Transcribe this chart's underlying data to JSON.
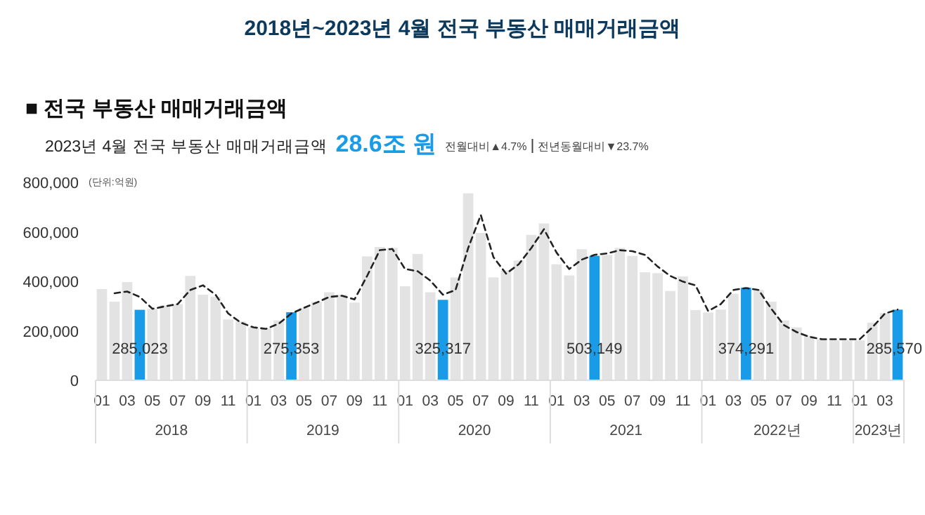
{
  "chart_data": {
    "type": "bar",
    "title": "2018년~2023년 4월 전국 부동산 매매거래금액",
    "subtitle": "■ 전국 부동산 매매거래금액",
    "ylabel": "(단위:억원)",
    "annotations": [
      "2023년 4월 전국 부동산 매매거래금액",
      "28.6조 원",
      "전월대비▲4.7%",
      "전년동월대비▼23.7%",
      "2018",
      "2019",
      "2020",
      "2021",
      "2022년",
      "2023년"
    ],
    "categories": [
      "01",
      null,
      "03",
      null,
      "05",
      null,
      "07",
      null,
      "09",
      null,
      "11",
      null,
      "01",
      null,
      "03",
      null,
      "05",
      null,
      "07",
      null,
      "09",
      null,
      "11",
      null,
      "01",
      null,
      "03",
      null,
      "05",
      null,
      "07",
      null,
      "09",
      null,
      "11",
      null,
      "01",
      null,
      "03",
      null,
      "05",
      null,
      "07",
      null,
      "09",
      null,
      "11",
      null,
      "01",
      null,
      "03",
      null,
      "05",
      null,
      "07",
      null,
      "09",
      null,
      "11",
      null,
      "01",
      null,
      "03",
      null
    ],
    "ylim": [
      0,
      800000
    ],
    "yticks": [
      {
        "value": 0,
        "label": "0"
      },
      {
        "value": 200000,
        "label": "200,000"
      },
      {
        "value": 400000,
        "label": "400,000"
      },
      {
        "value": 600000,
        "label": "600,000"
      },
      {
        "value": 800000,
        "label": "800,000"
      }
    ],
    "grid": false,
    "series": [
      {
        "colors": [
          "#e3e3e3",
          "#e3e3e3",
          "#e3e3e3",
          "#1a9be8",
          "#e3e3e3",
          "#e3e3e3",
          "#e3e3e3",
          "#e3e3e3",
          "#e3e3e3",
          "#e3e3e3",
          "#e3e3e3",
          "#e3e3e3",
          "#e3e3e3",
          "#e3e3e3",
          "#e3e3e3",
          "#1a9be8",
          "#e3e3e3",
          "#e3e3e3",
          "#e3e3e3",
          "#e3e3e3",
          "#e3e3e3",
          "#e3e3e3",
          "#e3e3e3",
          "#e3e3e3",
          "#e3e3e3",
          "#e3e3e3",
          "#e3e3e3",
          "#1a9be8",
          "#e3e3e3",
          "#e3e3e3",
          "#e3e3e3",
          "#e3e3e3",
          "#e3e3e3",
          "#e3e3e3",
          "#e3e3e3",
          "#e3e3e3",
          "#e3e3e3",
          "#e3e3e3",
          "#e3e3e3",
          "#1a9be8",
          "#e3e3e3",
          "#e3e3e3",
          "#e3e3e3",
          "#e3e3e3",
          "#e3e3e3",
          "#e3e3e3",
          "#e3e3e3",
          "#e3e3e3",
          "#e3e3e3",
          "#e3e3e3",
          "#e3e3e3",
          "#1a9be8",
          "#e3e3e3",
          "#e3e3e3",
          "#e3e3e3",
          "#e3e3e3",
          "#e3e3e3",
          "#e3e3e3",
          "#e3e3e3",
          "#e3e3e3",
          "#e3e3e3",
          "#e3e3e3",
          "#e3e3e3",
          "#1a9be8"
        ],
        "values": [
          369000,
          318000,
          397000,
          285023,
          289000,
          303000,
          308000,
          422000,
          346000,
          337000,
          246000,
          238000,
          214000,
          210000,
          242000,
          275353,
          293000,
          318000,
          356000,
          346000,
          314000,
          501000,
          539000,
          535000,
          380000,
          511000,
          356000,
          325317,
          416000,
          756000,
          596000,
          416000,
          444000,
          484000,
          588000,
          634000,
          469000,
          424000,
          530000,
          503149,
          507000,
          535000,
          503000,
          437000,
          433000,
          361000,
          420000,
          284000,
          274000,
          286000,
          350000,
          374291,
          365000,
          318000,
          242000,
          214000,
          180000,
          166000,
          161000,
          161000,
          161000,
          233000,
          272000,
          285570
        ],
        "value_labels": [
          null,
          null,
          null,
          "285,023",
          null,
          null,
          null,
          null,
          null,
          null,
          null,
          null,
          null,
          null,
          null,
          "275,353",
          null,
          null,
          null,
          null,
          null,
          null,
          null,
          null,
          null,
          null,
          null,
          "325,317",
          null,
          null,
          null,
          null,
          null,
          null,
          null,
          null,
          null,
          null,
          null,
          "503,149",
          null,
          null,
          null,
          null,
          null,
          null,
          null,
          null,
          null,
          null,
          null,
          "374,291",
          null,
          null,
          null,
          null,
          null,
          null,
          null,
          null,
          null,
          null,
          null,
          "285,570"
        ]
      },
      {
        "type": "line",
        "color": "#222222",
        "line_style": "dashed",
        "values": [
          null,
          352000,
          359000,
          337000,
          289000,
          299000,
          308000,
          365000,
          384000,
          346000,
          270000,
          233000,
          214000,
          208000,
          229000,
          270000,
          293000,
          314000,
          337000,
          342000,
          327000,
          422000,
          526000,
          531000,
          450000,
          441000,
          403000,
          346000,
          365000,
          535000,
          668000,
          498000,
          431000,
          469000,
          535000,
          611000,
          516000,
          450000,
          488000,
          507000,
          513000,
          526000,
          522000,
          507000,
          460000,
          422000,
          399000,
          384000,
          280000,
          308000,
          365000,
          373000,
          365000,
          289000,
          223000,
          195000,
          176000,
          166000,
          166000,
          166000,
          166000,
          214000,
          270000,
          286000
        ]
      }
    ]
  }
}
